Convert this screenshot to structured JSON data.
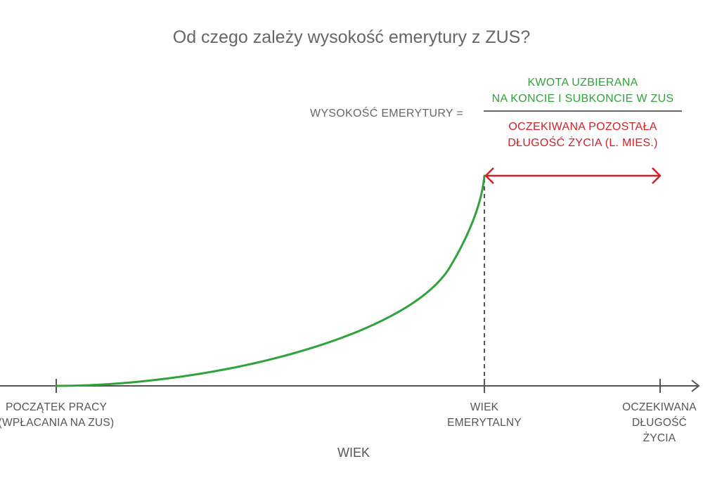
{
  "title": "Od czego zależy wysokość emerytury z ZUS?",
  "formula": {
    "label": "WYSOKOŚĆ EMERYTURY =",
    "numerator": [
      "KWOTA UZBIERANA",
      "NA KONCIE I SUBKONCIE W ZUS"
    ],
    "denominator": [
      "OCZEKIWANA POZOSTAŁA",
      "DŁUGOŚĆ ŻYCIA (L. MIES.)"
    ]
  },
  "axis": {
    "label": "WIEK",
    "ticks": [
      {
        "lines": [
          "POCZĄTEK PRACY",
          "(WPŁACANIA NA ZUS)"
        ]
      },
      {
        "lines": [
          "WIEK",
          "EMERYTALNY"
        ]
      },
      {
        "lines": [
          "OCZEKIWANA",
          "DŁUGOŚĆ",
          "ŻYCIA"
        ]
      }
    ]
  },
  "colors": {
    "growth_curve": "#2fa33a",
    "life_expectancy_arrow": "#d32027",
    "axis": "#555555",
    "text": "#666666"
  }
}
